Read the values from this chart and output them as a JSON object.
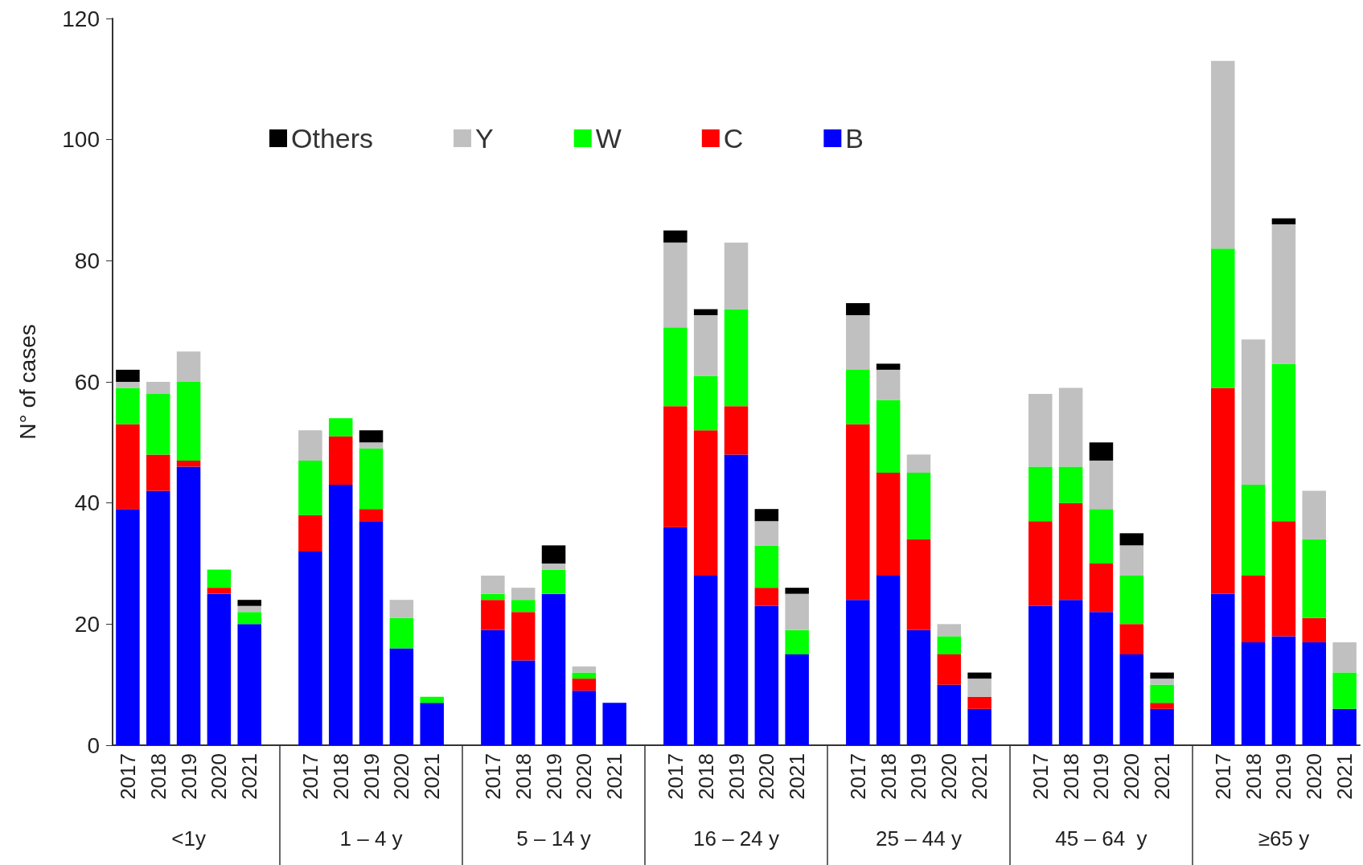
{
  "chart_data": {
    "type": "bar",
    "stacked": true,
    "ylabel": "N° of cases",
    "ylim": [
      0,
      120
    ],
    "yticks": [
      0,
      20,
      40,
      60,
      80,
      100,
      120
    ],
    "grid": false,
    "legend": "top",
    "categories": [
      "2017",
      "2018",
      "2019",
      "2020",
      "2021",
      null,
      "2017",
      "2018",
      "2019",
      "2020",
      "2021",
      null,
      "2017",
      "2018",
      "2019",
      "2020",
      "2021",
      null,
      "2017",
      "2018",
      "2019",
      "2020",
      "2021",
      null,
      "2017",
      "2018",
      "2019",
      "2020",
      "2021",
      null,
      "2017",
      "2018",
      "2019",
      "2020",
      "2021",
      null,
      "2017",
      "2018",
      "2019",
      "2020",
      "2021"
    ],
    "annotations": [
      "<1y",
      "1 – 4 y",
      "5 – 14 y",
      "16 – 24 y",
      "25 – 44 y",
      "45 – 64  y",
      "≥65 y"
    ],
    "series": [
      {
        "name": "B",
        "color": "#0000ff",
        "values": [
          39,
          42,
          46,
          25,
          20,
          null,
          32,
          43,
          37,
          16,
          7,
          null,
          19,
          14,
          25,
          9,
          7,
          null,
          36,
          28,
          48,
          23,
          15,
          null,
          24,
          28,
          19,
          10,
          6,
          null,
          23,
          24,
          22,
          15,
          6,
          null,
          25,
          17,
          18,
          17,
          6
        ]
      },
      {
        "name": "C",
        "color": "#ff0000",
        "values": [
          14,
          6,
          1,
          1,
          0,
          null,
          6,
          8,
          2,
          0,
          0,
          null,
          5,
          8,
          0,
          2,
          0,
          null,
          20,
          24,
          8,
          3,
          0,
          null,
          29,
          17,
          15,
          5,
          2,
          null,
          14,
          16,
          8,
          5,
          1,
          null,
          34,
          11,
          19,
          4,
          0
        ]
      },
      {
        "name": "W",
        "color": "#00ff00",
        "values": [
          6,
          10,
          13,
          3,
          2,
          null,
          9,
          3,
          10,
          5,
          1,
          null,
          1,
          2,
          4,
          1,
          0,
          null,
          13,
          9,
          16,
          7,
          4,
          null,
          9,
          12,
          11,
          3,
          0,
          null,
          9,
          6,
          9,
          8,
          3,
          null,
          23,
          15,
          26,
          13,
          6
        ]
      },
      {
        "name": "Y",
        "color": "#c0c0c0",
        "values": [
          1,
          2,
          5,
          0,
          1,
          null,
          5,
          0,
          1,
          3,
          0,
          null,
          3,
          2,
          1,
          1,
          0,
          null,
          14,
          10,
          11,
          4,
          6,
          null,
          9,
          5,
          3,
          2,
          3,
          null,
          12,
          13,
          8,
          5,
          1,
          null,
          31,
          24,
          23,
          8,
          5
        ]
      },
      {
        "name": "Others",
        "color": "#000000",
        "values": [
          2,
          0,
          0,
          0,
          1,
          null,
          0,
          0,
          2,
          0,
          0,
          null,
          0,
          0,
          3,
          0,
          0,
          null,
          2,
          1,
          0,
          2,
          1,
          null,
          2,
          1,
          0,
          0,
          1,
          null,
          0,
          0,
          3,
          2,
          1,
          null,
          0,
          0,
          1,
          0,
          0
        ]
      }
    ]
  }
}
